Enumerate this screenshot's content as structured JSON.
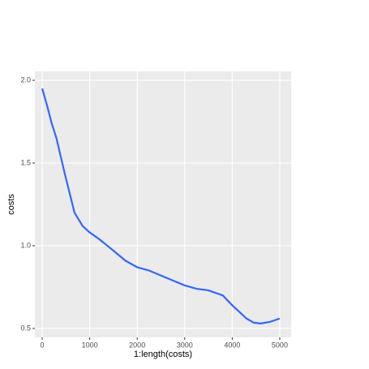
{
  "chart_data": {
    "type": "line",
    "x_label": "1:length(costs)",
    "y_label": "costs",
    "x": [
      0,
      100,
      200,
      300,
      480,
      680,
      850,
      1000,
      1200,
      1500,
      1750,
      2000,
      2250,
      2500,
      2750,
      3000,
      3250,
      3500,
      3800,
      4000,
      4150,
      4300,
      4450,
      4600,
      4800,
      5000
    ],
    "series": [
      {
        "name": "costs",
        "color": "#3366ff",
        "values": [
          1.95,
          1.85,
          1.74,
          1.65,
          1.43,
          1.2,
          1.12,
          1.08,
          1.04,
          0.97,
          0.91,
          0.87,
          0.85,
          0.82,
          0.79,
          0.76,
          0.74,
          0.73,
          0.7,
          0.64,
          0.6,
          0.56,
          0.535,
          0.53,
          0.54,
          0.56
        ]
      }
    ],
    "xlim": [
      -154,
      5240
    ],
    "ylim": [
      0.446,
      2.054
    ],
    "xticks": [
      0,
      1000,
      2000,
      3000,
      4000,
      5000
    ],
    "yticks": [
      0.5,
      {
        "value": 1,
        "label": "1.0"
      },
      1.5,
      {
        "value": 2,
        "label": "2.0"
      }
    ],
    "grid": true
  }
}
